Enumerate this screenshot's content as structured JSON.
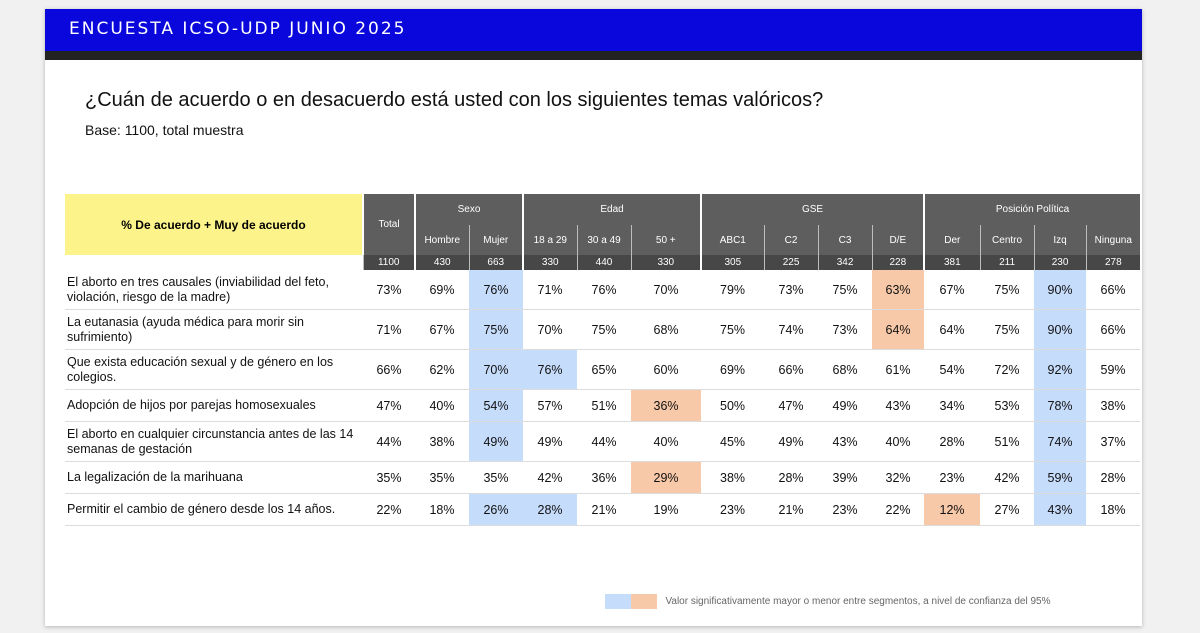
{
  "banner": {
    "title": "ENCUESTA ICSO-UDP JUNIO 2025"
  },
  "question": "¿Cuán de acuerdo o en desacuerdo está usted con los siguientes temas valóricos?",
  "base": "Base: 1100, total muestra",
  "table": {
    "corner_label": "% De acuerdo + Muy de acuerdo",
    "total_label": "Total",
    "groups": [
      "Sexo",
      "Edad",
      "GSE",
      "Posición Política"
    ],
    "columns": [
      "Hombre",
      "Mujer",
      "18 a 29",
      "30 a 49",
      "50 +",
      "ABC1",
      "C2",
      "C3",
      "D/E",
      "Der",
      "Centro",
      "Izq",
      "Ninguna"
    ],
    "n": [
      "1100",
      "430",
      "663",
      "330",
      "440",
      "330",
      "305",
      "225",
      "342",
      "228",
      "381",
      "211",
      "230",
      "278"
    ],
    "rows": [
      {
        "label": "El aborto en tres causales (inviabilidad del feto, violación, riesgo de la madre)",
        "values": [
          "73%",
          "69%",
          "76%",
          "71%",
          "76%",
          "70%",
          "79%",
          "73%",
          "75%",
          "63%",
          "67%",
          "75%",
          "90%",
          "66%"
        ]
      },
      {
        "label": "La eutanasia (ayuda médica para morir sin sufrimiento)",
        "values": [
          "71%",
          "67%",
          "75%",
          "70%",
          "75%",
          "68%",
          "75%",
          "74%",
          "73%",
          "64%",
          "64%",
          "75%",
          "90%",
          "66%"
        ]
      },
      {
        "label": "Que exista educación sexual y de género en los colegios.",
        "values": [
          "66%",
          "62%",
          "70%",
          "76%",
          "65%",
          "60%",
          "69%",
          "66%",
          "68%",
          "61%",
          "54%",
          "72%",
          "92%",
          "59%"
        ]
      },
      {
        "label": "Adopción de hijos por parejas homosexuales",
        "values": [
          "47%",
          "40%",
          "54%",
          "57%",
          "51%",
          "36%",
          "50%",
          "47%",
          "49%",
          "43%",
          "34%",
          "53%",
          "78%",
          "38%"
        ]
      },
      {
        "label": "El aborto en cualquier circunstancia antes de las 14 semanas de gestación",
        "values": [
          "44%",
          "38%",
          "49%",
          "49%",
          "44%",
          "40%",
          "45%",
          "49%",
          "43%",
          "40%",
          "28%",
          "51%",
          "74%",
          "37%"
        ]
      },
      {
        "label": "La legalización de la marihuana",
        "values": [
          "35%",
          "35%",
          "35%",
          "42%",
          "36%",
          "29%",
          "38%",
          "28%",
          "39%",
          "32%",
          "23%",
          "42%",
          "59%",
          "28%"
        ]
      },
      {
        "label": "Permitir el cambio de género desde los 14 años.",
        "values": [
          "22%",
          "18%",
          "26%",
          "28%",
          "21%",
          "19%",
          "23%",
          "21%",
          "23%",
          "22%",
          "12%",
          "27%",
          "43%",
          "18%"
        ]
      }
    ]
  },
  "legend": {
    "text": "Valor significativamente mayor o menor entre segmentos, a nivel de confianza del 95%"
  }
}
